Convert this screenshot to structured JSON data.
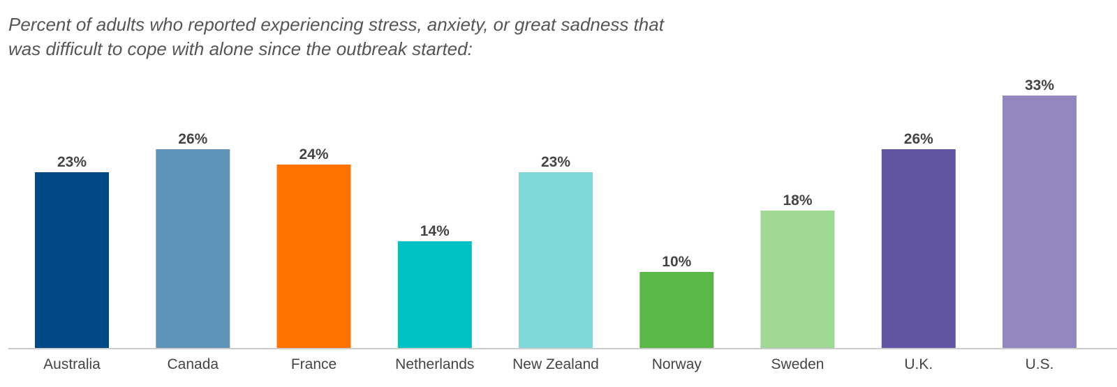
{
  "chart_data": {
    "type": "bar",
    "title": "",
    "subtitle": "Percent of adults who reported experiencing stress, anxiety, or great sadness that was difficult to cope with alone since the outbreak started:",
    "xlabel": "",
    "ylabel": "",
    "categories": [
      "Australia",
      "Canada",
      "France",
      "Netherlands",
      "New Zealand",
      "Norway",
      "Sweden",
      "U.K.",
      "U.S."
    ],
    "values": [
      23,
      26,
      24,
      14,
      23,
      10,
      18,
      26,
      33
    ],
    "value_labels": [
      "23%",
      "26%",
      "24%",
      "14%",
      "23%",
      "10%",
      "18%",
      "26%",
      "33%"
    ],
    "colors": [
      "#004987",
      "#5f93b7",
      "#ff7300",
      "#00c1c1",
      "#80d9d9",
      "#58b947",
      "#9fd893",
      "#6353a3",
      "#9486bf"
    ],
    "ylim": [
      0,
      33
    ],
    "grid": false,
    "legend": "none",
    "baseline_color": "#cccccc"
  }
}
